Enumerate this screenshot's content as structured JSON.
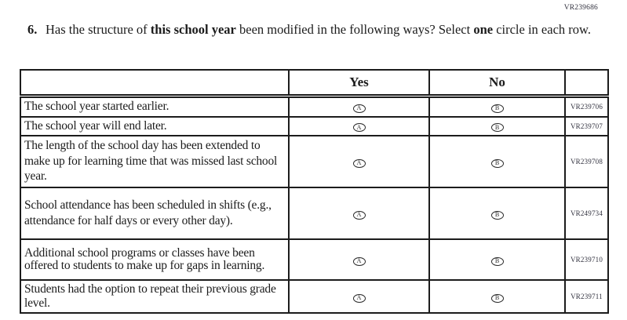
{
  "page_code": "VR239686",
  "question": {
    "number": "6.",
    "segments": [
      {
        "text": "Has the structure of ",
        "bold": false
      },
      {
        "text": "this school year",
        "bold": true
      },
      {
        "text": " been modified in the following ways? Select ",
        "bold": false
      },
      {
        "text": "one",
        "bold": true
      },
      {
        "text": " circle in each row.",
        "bold": false
      }
    ]
  },
  "table": {
    "yes_header": "Yes",
    "no_header": "No",
    "option_letters": {
      "yes": "A",
      "no": "B"
    },
    "rows": [
      {
        "statement": "The school year started earlier.",
        "code": "VR239706"
      },
      {
        "statement": "The school year will end later.",
        "code": "VR239707"
      },
      {
        "statement": "The length of the school day has been extended to make up for learning time that was missed last school year.",
        "code": "VR239708"
      },
      {
        "statement": "School attendance has been scheduled in shifts (e.g., attendance for half days or every other day).",
        "code": "VR249734"
      },
      {
        "statement": "Additional school programs or classes have been offered to students to make up for gaps in learning.",
        "code": "VR239710"
      },
      {
        "statement": "Students had the option to repeat their previous grade level.",
        "code": "VR239711"
      }
    ]
  },
  "colors": {
    "border": "#1c1c1c",
    "text": "#1b1b1b",
    "code_text": "#32323f"
  }
}
